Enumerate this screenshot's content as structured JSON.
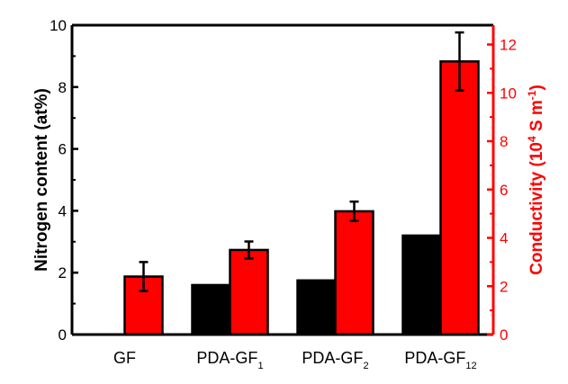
{
  "chart_data": {
    "type": "bar",
    "categories": [
      "GF",
      "PDA-GF",
      "PDA-GF",
      "PDA-GF"
    ],
    "category_subscripts": [
      "",
      "1",
      "2",
      "12"
    ],
    "series": [
      {
        "name": "Nitrogen content",
        "axis": "left",
        "color": "#000000",
        "values": [
          0,
          1.6,
          1.75,
          3.2
        ],
        "errors": [
          0,
          0,
          0,
          0
        ]
      },
      {
        "name": "Conductivity",
        "axis": "right",
        "color": "#ff0000",
        "values": [
          2.4,
          3.5,
          5.1,
          11.3
        ],
        "errors": [
          0.6,
          0.35,
          0.4,
          1.2
        ]
      }
    ],
    "left_axis": {
      "label": "Nitrogen content (at%)",
      "ylim": [
        0,
        10
      ],
      "ticks": [
        0,
        2,
        4,
        6,
        8,
        10
      ],
      "color": "#000000"
    },
    "right_axis": {
      "label_main": "Conductivity (10",
      "label_sup1": "4",
      "label_mid": " S m",
      "label_sup2": "-1",
      "label_end": ")",
      "ylim": [
        0,
        12.8
      ],
      "ticks": [
        0,
        2,
        4,
        6,
        8,
        10,
        12
      ],
      "color": "#ff0000"
    },
    "title": "",
    "xlabel": ""
  }
}
